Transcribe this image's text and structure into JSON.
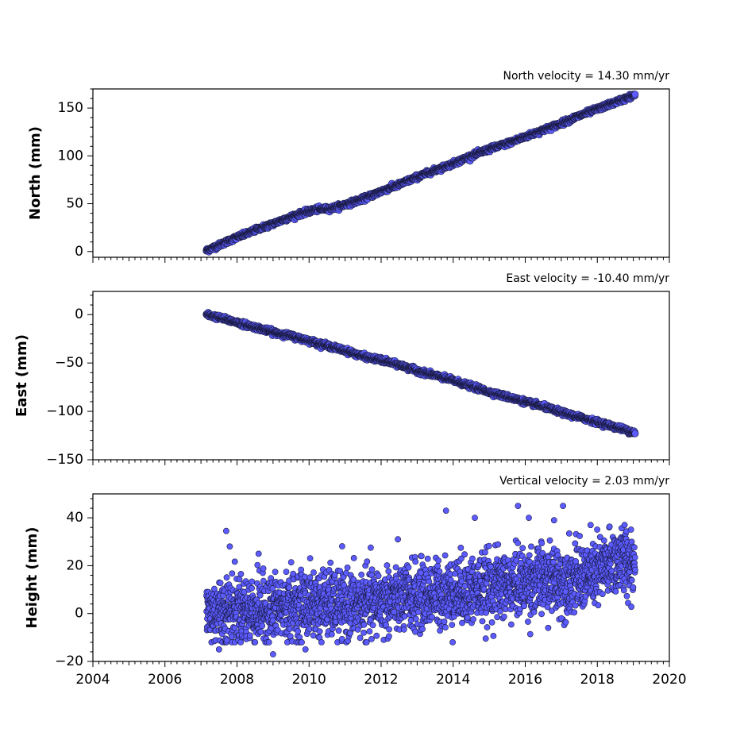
{
  "chart_data": [
    {
      "type": "scatter",
      "id": "north",
      "title": "North velocity = 14.30 mm/yr",
      "ylabel": "North (mm)",
      "xlim": [
        2004,
        2020
      ],
      "ylim": [
        -6,
        170
      ],
      "yticks": [
        0,
        50,
        100,
        150
      ],
      "xticks": [
        2004,
        2006,
        2008,
        2010,
        2012,
        2014,
        2016,
        2018,
        2020
      ],
      "show_x_labels": false,
      "series": [
        {
          "x": [
            2007.15,
            2007.4,
            2007.7,
            2008.0,
            2008.3,
            2008.6,
            2009.0,
            2009.4,
            2009.8,
            2010.2,
            2010.6,
            2011.0,
            2011.5,
            2012.0,
            2012.5,
            2013.0,
            2013.5,
            2014.0,
            2014.5,
            2015.0,
            2015.5,
            2016.0,
            2016.5,
            2017.0,
            2017.5,
            2018.0,
            2018.5,
            2019.05
          ],
          "y": [
            1,
            5,
            10,
            15,
            19,
            24,
            29,
            35,
            40,
            44,
            45,
            49,
            55,
            63,
            70,
            78,
            85,
            92,
            100,
            107,
            113,
            120,
            127,
            134,
            142,
            149,
            156,
            164
          ]
        }
      ]
    },
    {
      "type": "scatter",
      "id": "east",
      "title": "East velocity = -10.40 mm/yr",
      "ylabel": "East (mm)",
      "xlim": [
        2004,
        2020
      ],
      "ylim": [
        -150,
        24
      ],
      "yticks": [
        -150,
        -100,
        -50,
        0
      ],
      "xticks": [
        2004,
        2006,
        2008,
        2010,
        2012,
        2014,
        2016,
        2018,
        2020
      ],
      "show_x_labels": false,
      "series": [
        {
          "x": [
            2007.15,
            2007.5,
            2008.0,
            2008.5,
            2009.0,
            2009.5,
            2010.0,
            2010.5,
            2011.0,
            2011.5,
            2012.0,
            2012.5,
            2013.0,
            2013.5,
            2014.0,
            2014.5,
            2015.0,
            2015.5,
            2016.0,
            2016.5,
            2017.0,
            2017.5,
            2018.0,
            2018.5,
            2019.05
          ],
          "y": [
            0,
            -3,
            -8,
            -13,
            -18,
            -22,
            -27,
            -32,
            -37,
            -43,
            -47,
            -52,
            -58,
            -63,
            -68,
            -74,
            -80,
            -85,
            -90,
            -95,
            -101,
            -106,
            -111,
            -116,
            -122
          ]
        }
      ]
    },
    {
      "type": "scatter",
      "id": "height",
      "title": "Vertical velocity = 2.03 mm/yr",
      "ylabel": "Height (mm)",
      "xlim": [
        2004,
        2020
      ],
      "ylim": [
        -20,
        50
      ],
      "yticks": [
        -20,
        0,
        20,
        40
      ],
      "xticks": [
        2004,
        2006,
        2008,
        2010,
        2012,
        2014,
        2016,
        2018,
        2020
      ],
      "show_x_labels": true,
      "series": [
        {
          "x": [
            2007.15,
            2007.5,
            2008.0,
            2008.5,
            2009.0,
            2009.5,
            2010.0,
            2010.5,
            2011.0,
            2011.5,
            2012.0,
            2012.5,
            2013.0,
            2013.5,
            2014.0,
            2014.5,
            2015.0,
            2015.5,
            2016.0,
            2016.5,
            2017.0,
            2017.5,
            2018.0,
            2018.5,
            2019.05
          ],
          "y": [
            0,
            1,
            2,
            1,
            2,
            3,
            4,
            4,
            3,
            4,
            5,
            6,
            7,
            8,
            9,
            10,
            11,
            12,
            13,
            14,
            14,
            15,
            17,
            22,
            22
          ],
          "scatter_mm": 7,
          "outliers": [
            [
              2007.7,
              34.5
            ],
            [
              2007.8,
              28
            ],
            [
              2008.6,
              25
            ],
            [
              2013.8,
              43
            ],
            [
              2014.6,
              40
            ],
            [
              2015.8,
              45
            ],
            [
              2016.1,
              40
            ],
            [
              2017.05,
              45
            ],
            [
              2016.8,
              39
            ],
            [
              2009.0,
              -17
            ],
            [
              2009.9,
              -15
            ],
            [
              2007.5,
              -15
            ],
            [
              2017.0,
              -2
            ]
          ]
        }
      ]
    }
  ]
}
